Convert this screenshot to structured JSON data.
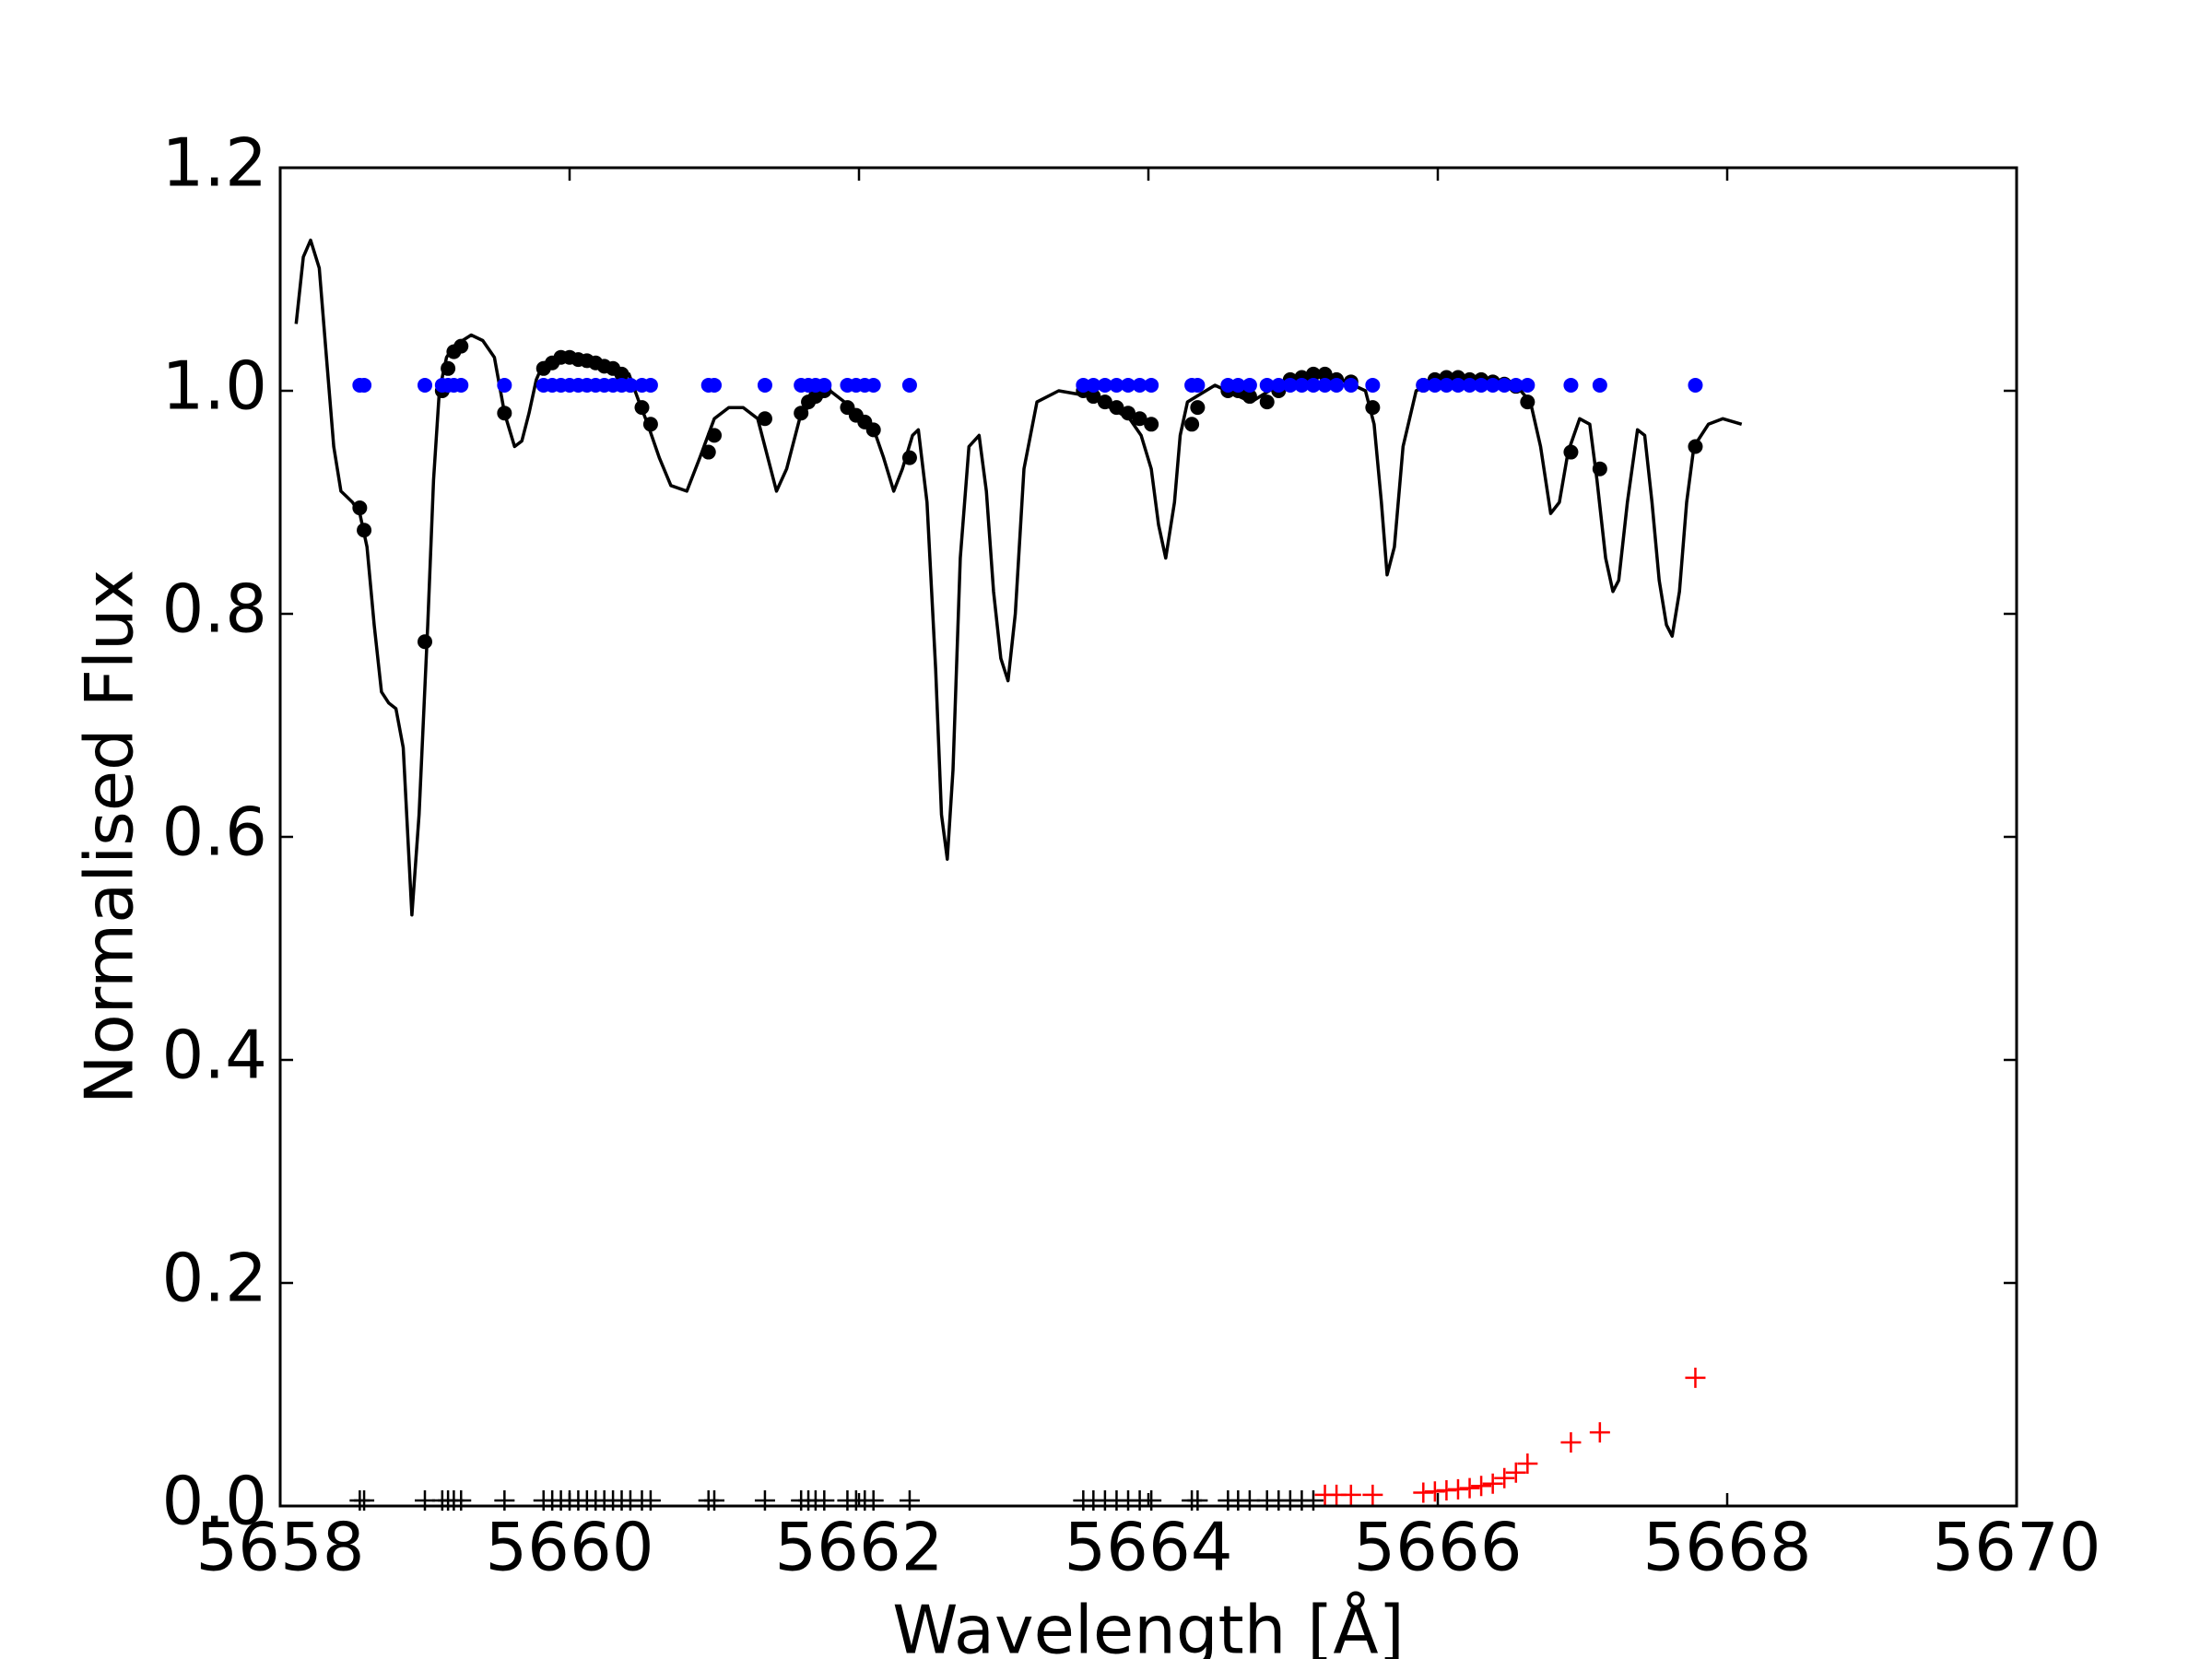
{
  "chart_data": {
    "type": "scatter",
    "xlabel": "Wavelength [Å]",
    "ylabel": "Normalised Flux",
    "xlim": [
      5658,
      5670
    ],
    "xticks": [
      5658,
      5660,
      5662,
      5664,
      5666,
      5668,
      5670
    ],
    "ylim": [
      0,
      1.2
    ],
    "yticks": [
      {
        "value": 0,
        "label": "0.0"
      },
      0.2,
      0.4,
      0.6,
      0.8,
      {
        "value": 1,
        "label": "1.0"
      },
      1.2
    ],
    "series": [
      {
        "style": "line",
        "color": "#000000",
        "x": [
          5658.11,
          5658.16,
          5658.21,
          5658.27,
          5658.32,
          5658.37,
          5658.42,
          5658.46,
          5658.5,
          5658.55,
          5658.6,
          5658.65,
          5658.7,
          5658.75,
          5658.8,
          5658.85,
          5658.91,
          5658.96,
          5659.02,
          5659.06,
          5659.1,
          5659.15,
          5659.2,
          5659.26,
          5659.32,
          5659.4,
          5659.48,
          5659.55,
          5659.62,
          5659.67,
          5659.72,
          5659.77,
          5659.82,
          5659.95,
          5660.1,
          5660.25,
          5660.41,
          5660.48,
          5660.54,
          5660.62,
          5660.7,
          5660.81,
          5660.9,
          5661.0,
          5661.1,
          5661.2,
          5661.3,
          5661.43,
          5661.5,
          5661.6,
          5661.8,
          5661.95,
          5662.09,
          5662.17,
          5662.24,
          5662.3,
          5662.37,
          5662.41,
          5662.47,
          5662.53,
          5662.57,
          5662.61,
          5662.65,
          5662.7,
          5662.76,
          5662.83,
          5662.88,
          5662.93,
          5662.98,
          5663.03,
          5663.08,
          5663.14,
          5663.23,
          5663.38,
          5663.6,
          5663.87,
          5663.95,
          5664.02,
          5664.07,
          5664.12,
          5664.18,
          5664.22,
          5664.27,
          5664.46,
          5664.71,
          5664.96,
          5665.25,
          5665.5,
          5665.56,
          5665.61,
          5665.65,
          5665.7,
          5665.76,
          5665.85,
          5666.04,
          5666.3,
          5666.54,
          5666.64,
          5666.71,
          5666.78,
          5666.84,
          5666.9,
          5666.98,
          5667.05,
          5667.1,
          5667.16,
          5667.21,
          5667.25,
          5667.31,
          5667.38,
          5667.43,
          5667.48,
          5667.53,
          5667.58,
          5667.62,
          5667.67,
          5667.72,
          5667.77,
          5667.87,
          5667.97,
          5668.1
        ],
        "values": [
          1.06,
          1.12,
          1.135,
          1.11,
          1.03,
          0.95,
          0.91,
          0.905,
          0.9,
          0.89,
          0.86,
          0.79,
          0.73,
          0.72,
          0.715,
          0.68,
          0.53,
          0.62,
          0.79,
          0.92,
          1.0,
          1.03,
          1.04,
          1.045,
          1.05,
          1.045,
          1.03,
          0.98,
          0.95,
          0.955,
          0.98,
          1.01,
          1.025,
          1.03,
          1.028,
          1.022,
          1.015,
          0.99,
          0.97,
          0.94,
          0.915,
          0.91,
          0.94,
          0.975,
          0.985,
          0.985,
          0.975,
          0.91,
          0.93,
          0.98,
          1.0,
          0.985,
          0.97,
          0.94,
          0.91,
          0.93,
          0.96,
          0.965,
          0.9,
          0.75,
          0.62,
          0.58,
          0.66,
          0.85,
          0.95,
          0.96,
          0.91,
          0.82,
          0.76,
          0.74,
          0.8,
          0.93,
          0.99,
          1.0,
          0.995,
          0.975,
          0.96,
          0.93,
          0.88,
          0.85,
          0.9,
          0.96,
          0.99,
          1.005,
          0.99,
          1.01,
          1.015,
          1.0,
          0.97,
          0.9,
          0.835,
          0.86,
          0.95,
          1.0,
          1.012,
          1.01,
          1.005,
          0.99,
          0.95,
          0.89,
          0.9,
          0.945,
          0.975,
          0.97,
          0.92,
          0.85,
          0.82,
          0.83,
          0.9,
          0.965,
          0.96,
          0.9,
          0.83,
          0.79,
          0.78,
          0.82,
          0.9,
          0.95,
          0.97,
          0.975,
          0.97
        ]
      },
      {
        "style": "dot",
        "color": "#000000",
        "x": [
          5658.55,
          5658.58,
          5659.0,
          5659.12,
          5659.16,
          5659.2,
          5659.25,
          5659.55,
          5659.82,
          5659.88,
          5659.94,
          5660.0,
          5660.06,
          5660.12,
          5660.18,
          5660.24,
          5660.3,
          5660.36,
          5660.42,
          5660.5,
          5660.56,
          5660.96,
          5661.0,
          5661.35,
          5661.6,
          5661.65,
          5661.7,
          5661.76,
          5661.92,
          5661.98,
          5662.04,
          5662.1,
          5662.35,
          5663.55,
          5663.62,
          5663.7,
          5663.78,
          5663.86,
          5663.94,
          5664.02,
          5664.3,
          5664.34,
          5664.55,
          5664.62,
          5664.7,
          5664.82,
          5664.9,
          5664.98,
          5665.06,
          5665.14,
          5665.22,
          5665.3,
          5665.4,
          5665.55,
          5665.9,
          5665.98,
          5666.06,
          5666.14,
          5666.22,
          5666.3,
          5666.38,
          5666.46,
          5666.54,
          5666.62,
          5666.92,
          5667.12,
          5667.78
        ],
        "values": [
          0.895,
          0.875,
          0.775,
          1.0,
          1.02,
          1.035,
          1.04,
          0.98,
          1.02,
          1.025,
          1.03,
          1.03,
          1.028,
          1.027,
          1.025,
          1.022,
          1.02,
          1.015,
          1.005,
          0.985,
          0.97,
          0.945,
          0.96,
          0.975,
          0.98,
          0.99,
          0.995,
          1.0,
          0.985,
          0.978,
          0.972,
          0.965,
          0.94,
          1.0,
          0.995,
          0.99,
          0.985,
          0.98,
          0.975,
          0.97,
          0.97,
          0.985,
          1.0,
          1.0,
          0.995,
          0.99,
          1.0,
          1.01,
          1.012,
          1.015,
          1.015,
          1.01,
          1.008,
          0.985,
          1.005,
          1.01,
          1.012,
          1.012,
          1.01,
          1.01,
          1.008,
          1.006,
          1.004,
          0.99,
          0.945,
          0.93,
          0.95
        ]
      },
      {
        "style": "dot",
        "color": "#0000ff",
        "x": [
          5658.55,
          5658.58,
          5659.0,
          5659.12,
          5659.16,
          5659.2,
          5659.25,
          5659.55,
          5659.82,
          5659.88,
          5659.94,
          5660.0,
          5660.06,
          5660.12,
          5660.18,
          5660.24,
          5660.3,
          5660.36,
          5660.42,
          5660.5,
          5660.56,
          5660.96,
          5661.0,
          5661.35,
          5661.6,
          5661.65,
          5661.7,
          5661.76,
          5661.92,
          5661.98,
          5662.04,
          5662.1,
          5662.35,
          5663.55,
          5663.62,
          5663.7,
          5663.78,
          5663.86,
          5663.94,
          5664.02,
          5664.3,
          5664.34,
          5664.55,
          5664.62,
          5664.7,
          5664.82,
          5664.9,
          5664.98,
          5665.06,
          5665.14,
          5665.22,
          5665.3,
          5665.4,
          5665.55,
          5665.9,
          5665.98,
          5666.06,
          5666.14,
          5666.22,
          5666.3,
          5666.38,
          5666.46,
          5666.54,
          5666.62,
          5666.92,
          5667.12,
          5667.78
        ],
        "values": [
          1.005,
          1.005,
          1.005,
          1.005,
          1.005,
          1.005,
          1.005,
          1.005,
          1.005,
          1.005,
          1.005,
          1.005,
          1.005,
          1.005,
          1.005,
          1.005,
          1.005,
          1.005,
          1.005,
          1.005,
          1.005,
          1.005,
          1.005,
          1.005,
          1.005,
          1.005,
          1.005,
          1.005,
          1.005,
          1.005,
          1.005,
          1.005,
          1.005,
          1.005,
          1.005,
          1.005,
          1.005,
          1.005,
          1.005,
          1.005,
          1.005,
          1.005,
          1.005,
          1.005,
          1.005,
          1.005,
          1.005,
          1.005,
          1.005,
          1.005,
          1.005,
          1.005,
          1.005,
          1.005,
          1.005,
          1.005,
          1.005,
          1.005,
          1.005,
          1.005,
          1.005,
          1.005,
          1.005,
          1.005,
          1.005,
          1.005,
          1.005
        ]
      },
      {
        "style": "plus",
        "color": "#000000",
        "x": [
          5658.55,
          5658.58,
          5659.0,
          5659.12,
          5659.16,
          5659.2,
          5659.25,
          5659.55,
          5659.82,
          5659.88,
          5659.94,
          5660.0,
          5660.06,
          5660.12,
          5660.18,
          5660.24,
          5660.3,
          5660.36,
          5660.42,
          5660.5,
          5660.56,
          5660.96,
          5661.0,
          5661.35,
          5661.6,
          5661.65,
          5661.7,
          5661.76,
          5661.92,
          5661.98,
          5662.04,
          5662.1,
          5662.35,
          5663.55,
          5663.62,
          5663.7,
          5663.78,
          5663.86,
          5663.94,
          5664.02,
          5664.3,
          5664.34,
          5664.55,
          5664.62,
          5664.7,
          5664.82,
          5664.9,
          5664.98,
          5665.06,
          5665.14
        ],
        "values": [
          0.005,
          0.005,
          0.005,
          0.005,
          0.005,
          0.005,
          0.005,
          0.005,
          0.005,
          0.005,
          0.005,
          0.005,
          0.005,
          0.005,
          0.005,
          0.005,
          0.005,
          0.005,
          0.005,
          0.005,
          0.005,
          0.005,
          0.005,
          0.005,
          0.005,
          0.005,
          0.005,
          0.005,
          0.005,
          0.005,
          0.005,
          0.005,
          0.005,
          0.005,
          0.005,
          0.005,
          0.005,
          0.005,
          0.005,
          0.005,
          0.005,
          0.005,
          0.005,
          0.005,
          0.005,
          0.005,
          0.005,
          0.005,
          0.005,
          0.005
        ]
      },
      {
        "style": "plus",
        "color": "#ff0000",
        "x": [
          5665.22,
          5665.3,
          5665.4,
          5665.55,
          5665.9,
          5665.98,
          5666.06,
          5666.14,
          5666.22,
          5666.3,
          5666.38,
          5666.46,
          5666.54,
          5666.62,
          5666.92,
          5667.12,
          5667.78
        ],
        "values": [
          0.01,
          0.01,
          0.01,
          0.01,
          0.012,
          0.013,
          0.014,
          0.015,
          0.016,
          0.018,
          0.02,
          0.025,
          0.03,
          0.038,
          0.057,
          0.066,
          0.115
        ]
      }
    ]
  }
}
